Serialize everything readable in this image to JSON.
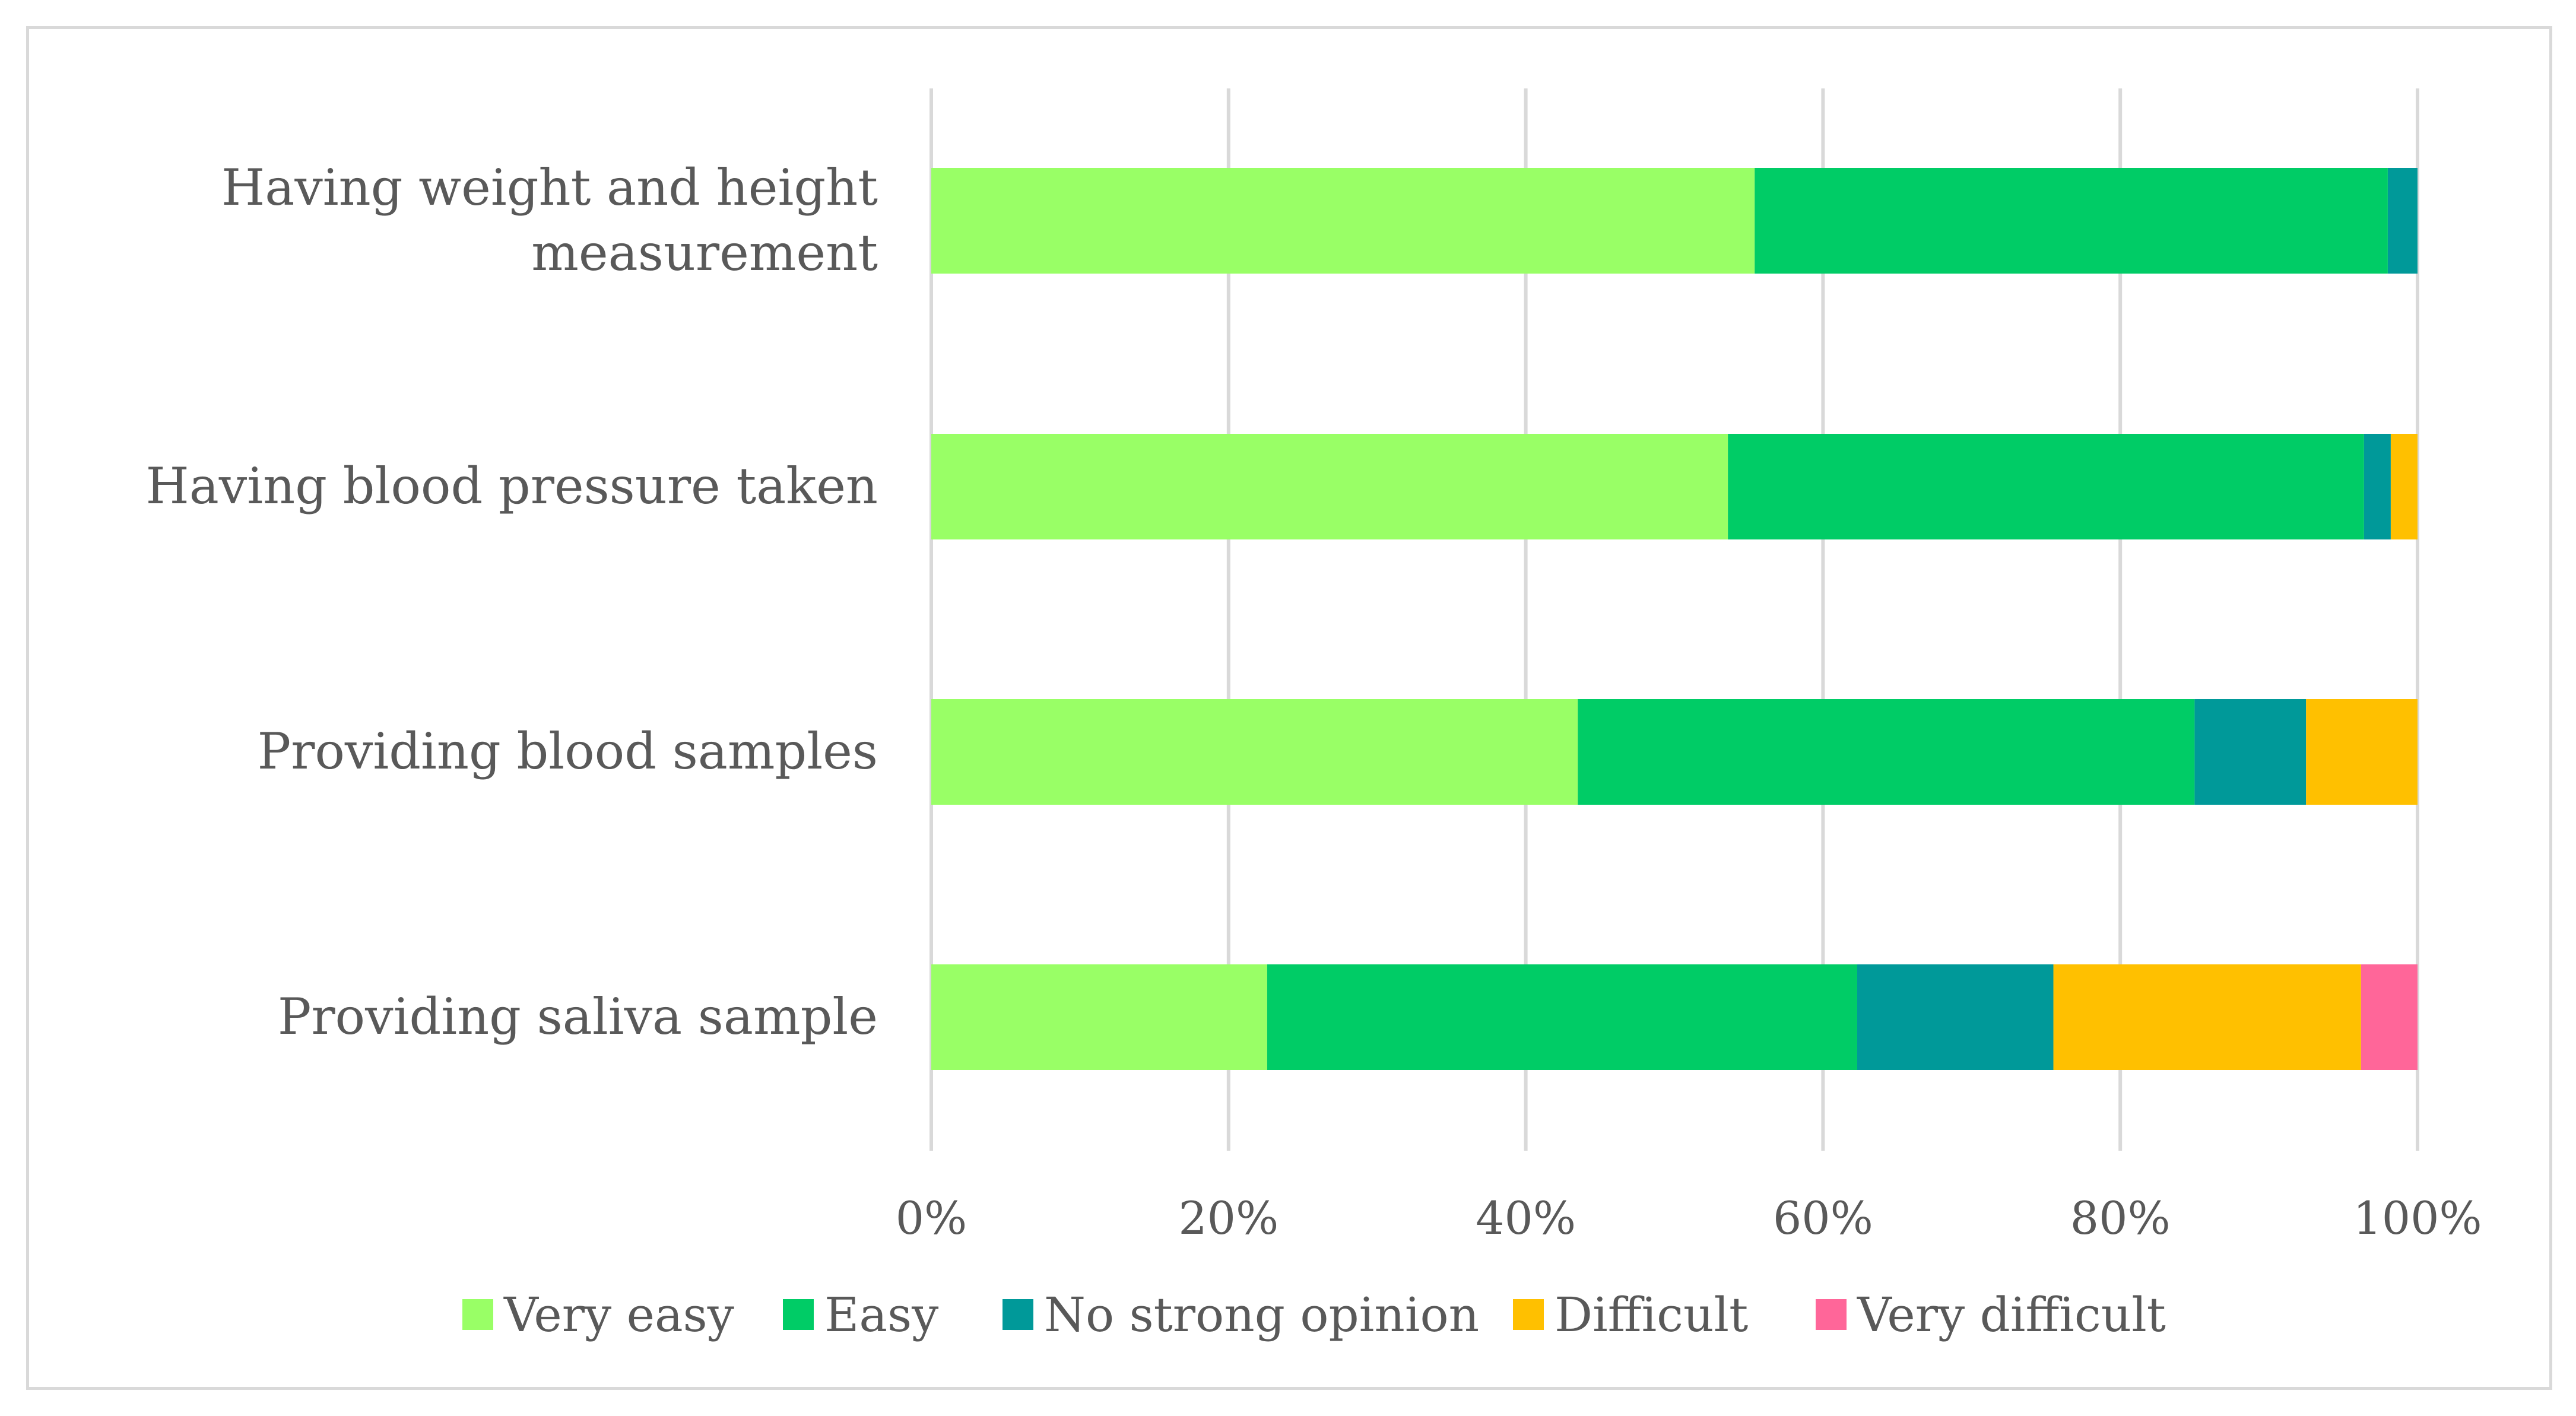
{
  "chart_data": {
    "type": "bar",
    "orientation": "horizontal",
    "stacked": "percent",
    "title": "",
    "xlabel": "",
    "ylabel": "",
    "xlim": [
      0,
      100
    ],
    "grid": "vertical",
    "legend_position": "bottom",
    "categories": [
      "Having weight and height measurement",
      "Having blood pressure taken",
      "Providing blood samples",
      "Providing saliva sample"
    ],
    "category_lines": [
      [
        "Having weight and height",
        "measurement"
      ],
      [
        "Having blood pressure taken"
      ],
      [
        "Providing blood samples"
      ],
      [
        "Providing saliva sample"
      ]
    ],
    "x_ticks": [
      0,
      20,
      40,
      60,
      80,
      100
    ],
    "x_tick_labels": [
      "0%",
      "20%",
      "40%",
      "60%",
      "80%",
      "100%"
    ],
    "series": [
      {
        "name": "Very easy",
        "color": "#99ff66",
        "values": [
          55.4,
          53.6,
          43.5,
          22.6
        ]
      },
      {
        "name": "Easy",
        "color": "#00cc66",
        "values": [
          42.6,
          42.8,
          41.5,
          39.7
        ]
      },
      {
        "name": "No strong opinion",
        "color": "#009999",
        "values": [
          2.0,
          1.8,
          7.5,
          13.2
        ]
      },
      {
        "name": "Difficult",
        "color": "#ffc000",
        "values": [
          0.0,
          1.8,
          7.5,
          20.7
        ]
      },
      {
        "name": "Very difficult",
        "color": "#ff6699",
        "values": [
          0.0,
          0.0,
          0.0,
          3.8
        ]
      }
    ]
  }
}
